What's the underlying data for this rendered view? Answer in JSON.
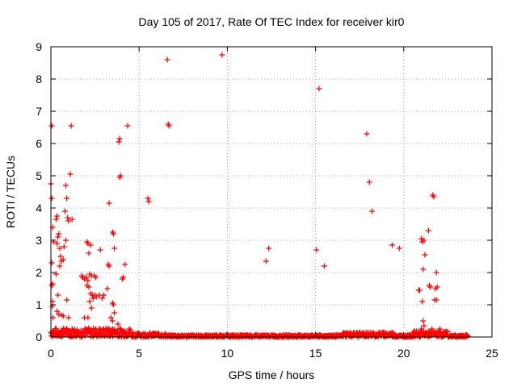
{
  "chart_data": {
    "type": "scatter",
    "title": "Day 105 of 2017, Rate Of TEC Index for receiver kir0",
    "xlabel": "GPS time / hours",
    "ylabel": "ROTI / TECUs",
    "xlim": [
      0,
      25
    ],
    "ylim": [
      0,
      9
    ],
    "xticks": [
      "0",
      "5",
      "10",
      "15",
      "20",
      "25"
    ],
    "yticks": [
      "0",
      "1",
      "2",
      "3",
      "4",
      "5",
      "6",
      "7",
      "8",
      "9"
    ],
    "grid": true,
    "marker": "plus",
    "color": "#ff0000",
    "series": [
      {
        "name": "ROTI",
        "points": [
          [
            0.05,
            6.55
          ],
          [
            0.0,
            4.75
          ],
          [
            0.05,
            4.3
          ],
          [
            0.1,
            3.4
          ],
          [
            0.15,
            2.95
          ],
          [
            0.05,
            2.3
          ],
          [
            0.1,
            1.65
          ],
          [
            0.05,
            1.6
          ],
          [
            0.1,
            1.1
          ],
          [
            0.08,
            0.95
          ],
          [
            0.12,
            0.6
          ],
          [
            0.35,
            3.75
          ],
          [
            0.3,
            3.65
          ],
          [
            0.45,
            3.2
          ],
          [
            0.4,
            3.1
          ],
          [
            0.5,
            2.75
          ],
          [
            0.35,
            2.9
          ],
          [
            0.55,
            2.5
          ],
          [
            0.6,
            2.35
          ],
          [
            0.5,
            2.2
          ],
          [
            0.3,
            1.95
          ],
          [
            0.4,
            1.3
          ],
          [
            0.35,
            0.8
          ],
          [
            0.45,
            0.7
          ],
          [
            0.6,
            0.68
          ],
          [
            0.7,
            0.65
          ],
          [
            0.85,
            4.7
          ],
          [
            0.9,
            4.3
          ],
          [
            0.8,
            3.9
          ],
          [
            0.95,
            3.7
          ],
          [
            1.0,
            3.6
          ],
          [
            0.85,
            3.0
          ],
          [
            0.75,
            2.8
          ],
          [
            0.7,
            2.4
          ],
          [
            0.9,
            1.15
          ],
          [
            1.0,
            0.6
          ],
          [
            1.15,
            6.55
          ],
          [
            1.1,
            5.05
          ],
          [
            1.2,
            3.65
          ],
          [
            1.75,
            1.9
          ],
          [
            1.8,
            1.85
          ],
          [
            1.9,
            1.8
          ],
          [
            2.05,
            2.95
          ],
          [
            2.1,
            2.9
          ],
          [
            2.25,
            2.85
          ],
          [
            2.15,
            2.6
          ],
          [
            2.0,
            1.85
          ],
          [
            2.1,
            1.75
          ],
          [
            2.2,
            1.95
          ],
          [
            2.3,
            1.9
          ],
          [
            2.05,
            1.6
          ],
          [
            2.15,
            1.55
          ],
          [
            2.25,
            1.35
          ],
          [
            2.35,
            1.3
          ],
          [
            2.4,
            1.2
          ],
          [
            2.5,
            1.3
          ],
          [
            2.6,
            1.25
          ],
          [
            2.55,
            1.85
          ],
          [
            2.45,
            1.9
          ],
          [
            2.2,
            1.1
          ],
          [
            2.3,
            0.9
          ],
          [
            2.1,
            0.6
          ],
          [
            1.9,
            0.6
          ],
          [
            2.8,
            2.7
          ],
          [
            2.75,
            1.3
          ],
          [
            2.9,
            1.2
          ],
          [
            3.0,
            1.3
          ],
          [
            3.3,
            4.15
          ],
          [
            3.25,
            2.25
          ],
          [
            3.3,
            2.2
          ],
          [
            3.2,
            1.5
          ],
          [
            3.5,
            3.25
          ],
          [
            3.55,
            3.2
          ],
          [
            3.6,
            2.75
          ],
          [
            3.5,
            1.05
          ],
          [
            3.55,
            1.0
          ],
          [
            3.6,
            0.75
          ],
          [
            3.4,
            0.6
          ],
          [
            3.5,
            0.5
          ],
          [
            3.8,
            0.4
          ],
          [
            3.9,
            6.15
          ],
          [
            3.85,
            6.05
          ],
          [
            3.95,
            5.0
          ],
          [
            3.9,
            4.95
          ],
          [
            4.1,
            1.85
          ],
          [
            4.05,
            1.8
          ],
          [
            4.2,
            2.25
          ],
          [
            4.35,
            6.55
          ],
          [
            5.5,
            4.3
          ],
          [
            5.55,
            4.2
          ],
          [
            6.6,
            8.6
          ],
          [
            6.65,
            6.6
          ],
          [
            6.7,
            6.55
          ],
          [
            9.7,
            8.75
          ],
          [
            12.2,
            2.35
          ],
          [
            12.35,
            2.75
          ],
          [
            15.05,
            2.7
          ],
          [
            15.2,
            7.7
          ],
          [
            15.5,
            2.2
          ],
          [
            17.9,
            6.3
          ],
          [
            18.05,
            4.8
          ],
          [
            18.2,
            3.9
          ],
          [
            19.35,
            2.85
          ],
          [
            19.75,
            2.75
          ],
          [
            20.85,
            1.45
          ],
          [
            20.9,
            1.45
          ],
          [
            21.0,
            3.05
          ],
          [
            21.05,
            2.95
          ],
          [
            21.15,
            3.0
          ],
          [
            21.1,
            2.1
          ],
          [
            21.2,
            2.55
          ],
          [
            21.05,
            1.1
          ],
          [
            21.1,
            0.5
          ],
          [
            21.15,
            0.35
          ],
          [
            21.0,
            0.25
          ],
          [
            21.4,
            3.3
          ],
          [
            21.45,
            1.6
          ],
          [
            21.5,
            1.55
          ],
          [
            21.65,
            4.4
          ],
          [
            21.7,
            4.35
          ],
          [
            21.85,
            2.0
          ],
          [
            21.8,
            1.5
          ],
          [
            21.9,
            1.55
          ],
          [
            21.75,
            1.15
          ],
          [
            21.85,
            1.15
          ],
          [
            21.6,
            0.25
          ],
          [
            22.05,
            0.25
          ]
        ]
      }
    ]
  }
}
